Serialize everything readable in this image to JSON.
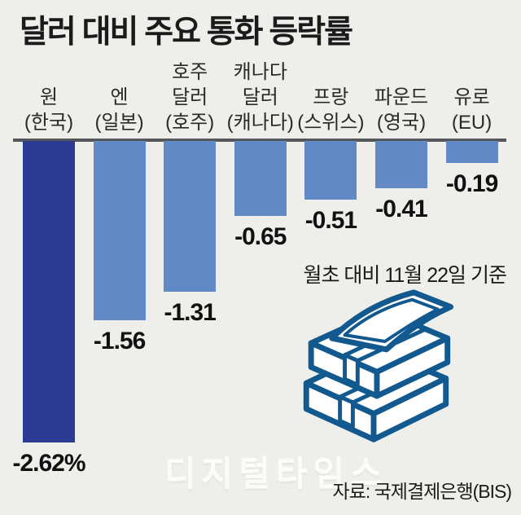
{
  "title": "달러 대비 주요 통화 등락률",
  "note": "월초 대비 11월 22일 기준",
  "source": "자료: 국제결제은행(BIS)",
  "watermark": "디지털타임스",
  "colors": {
    "background": "#eeefeb",
    "bar_highlight": "#2b3b94",
    "bar_default": "#6089c6",
    "axis_line": "#55565a",
    "icon_blue": "#11598e",
    "text": "#1b1b1b"
  },
  "chart_data": {
    "type": "bar",
    "orientation": "vertical",
    "unit": "%",
    "title": "달러 대비 주요 통화 등락률",
    "note": "월초 대비 11월 22일 기준",
    "source": "자료: 국제결제은행(BIS)",
    "categories": [
      {
        "top": "",
        "name": "원",
        "region": "(한국)"
      },
      {
        "top": "",
        "name": "엔",
        "region": "(일본)"
      },
      {
        "top": "호주",
        "name": "달러",
        "region": "(호주)"
      },
      {
        "top": "캐나다",
        "name": "달러",
        "region": "(캐나다)"
      },
      {
        "top": "",
        "name": "프랑",
        "region": "(스위스)"
      },
      {
        "top": "",
        "name": "파운드",
        "region": "(영국)"
      },
      {
        "top": "",
        "name": "유로",
        "region": "(EU)"
      }
    ],
    "values": [
      -2.62,
      -1.56,
      -1.31,
      -0.65,
      -0.51,
      -0.41,
      -0.19
    ],
    "value_labels": [
      "-2.62%",
      "-1.56",
      "-1.31",
      "-0.65",
      "-0.51",
      "-0.41",
      "-0.19"
    ],
    "highlight_index": 0,
    "baseline": 0,
    "ylim": [
      -2.8,
      0
    ],
    "grid": false,
    "legend": false
  }
}
